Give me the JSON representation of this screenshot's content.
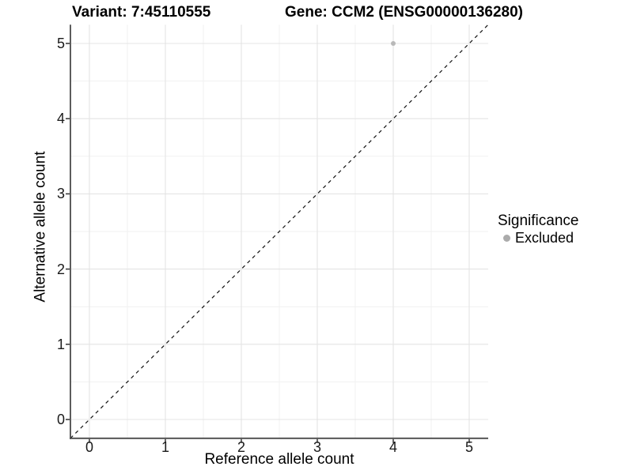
{
  "titles": {
    "variant": "Variant: 7:45110555",
    "gene": "Gene: CCM2 (ENSG00000136280)"
  },
  "axes": {
    "x": {
      "label": "Reference allele count",
      "tick_labels": [
        "0",
        "1",
        "2",
        "3",
        "4",
        "5"
      ]
    },
    "y": {
      "label": "Alternative allele count",
      "tick_labels": [
        "0",
        "1",
        "2",
        "3",
        "4",
        "5"
      ]
    }
  },
  "legend": {
    "title": "Significance",
    "entries": [
      {
        "label": "Excluded",
        "color": "#ababab"
      }
    ]
  },
  "colors": {
    "background": "#ffffff",
    "grid_major": "#e4e4e4",
    "grid_minor": "#f1f1f1",
    "axis_line": "#4a4a4a",
    "tick_mark": "#333333",
    "identity_line": "#111111",
    "point": "#b9b9b9",
    "text": "#000000"
  },
  "chart_data": {
    "type": "scatter",
    "title": "Variant: 7:45110555 | Gene: CCM2 (ENSG00000136280)",
    "xlabel": "Reference allele count",
    "ylabel": "Alternative allele count",
    "xlim": [
      -0.25,
      5.25
    ],
    "ylim": [
      -0.25,
      5.25
    ],
    "x_ticks": [
      0,
      1,
      2,
      3,
      4,
      5
    ],
    "y_ticks": [
      0,
      1,
      2,
      3,
      4,
      5
    ],
    "grid": "major and minor gridlines on, white panel, open top/right (axis lines on left and bottom only)",
    "legend_position": "right",
    "legend_title": "Significance",
    "series": [
      {
        "name": "Excluded",
        "color": "#ababab",
        "points": [
          {
            "x": 4,
            "y": 5
          }
        ]
      }
    ],
    "reference_line": {
      "type": "identity y=x",
      "style": "dashed",
      "color": "#111111",
      "extent": "full panel corner to corner"
    }
  }
}
